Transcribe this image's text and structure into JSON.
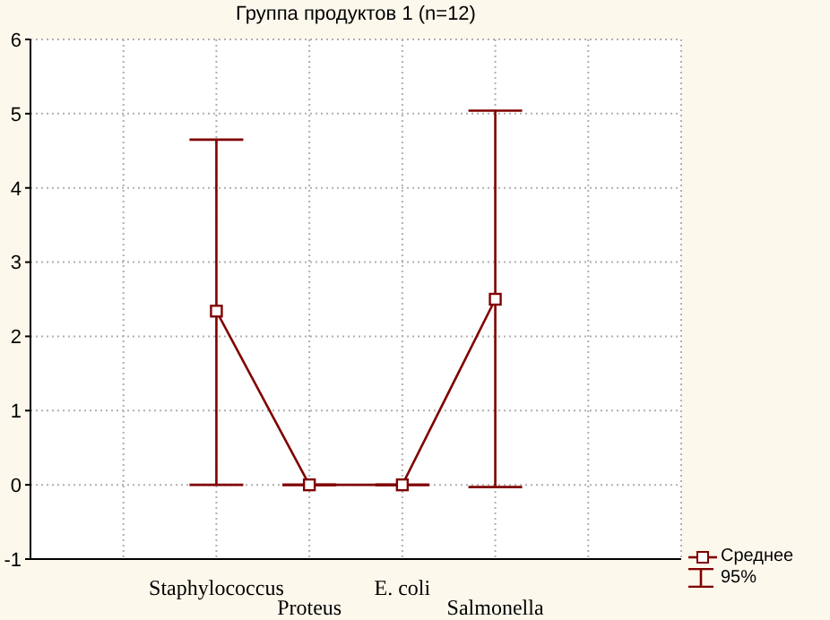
{
  "chart_data": {
    "type": "line",
    "title": "Группа продуктов 1 (n=12)",
    "categories": [
      null,
      "Staphylococcus",
      "Proteus",
      "E. coli",
      "Salmonella",
      null
    ],
    "series": [
      {
        "name": "Среднее",
        "color": "#800000",
        "values": [
          null,
          2.34,
          0,
          0,
          2.5,
          null
        ],
        "errors": [
          null,
          [
            0,
            4.65
          ],
          [
            0,
            0
          ],
          [
            0,
            0
          ],
          [
            -0.03,
            5.04
          ],
          null
        ]
      }
    ],
    "ylim": [
      -1,
      6
    ],
    "yticks": [
      -1,
      0,
      1,
      2,
      3,
      4,
      5,
      6
    ],
    "grid": true,
    "marker": "square",
    "legend": "bottom right",
    "annotations": [
      "95%"
    ]
  }
}
